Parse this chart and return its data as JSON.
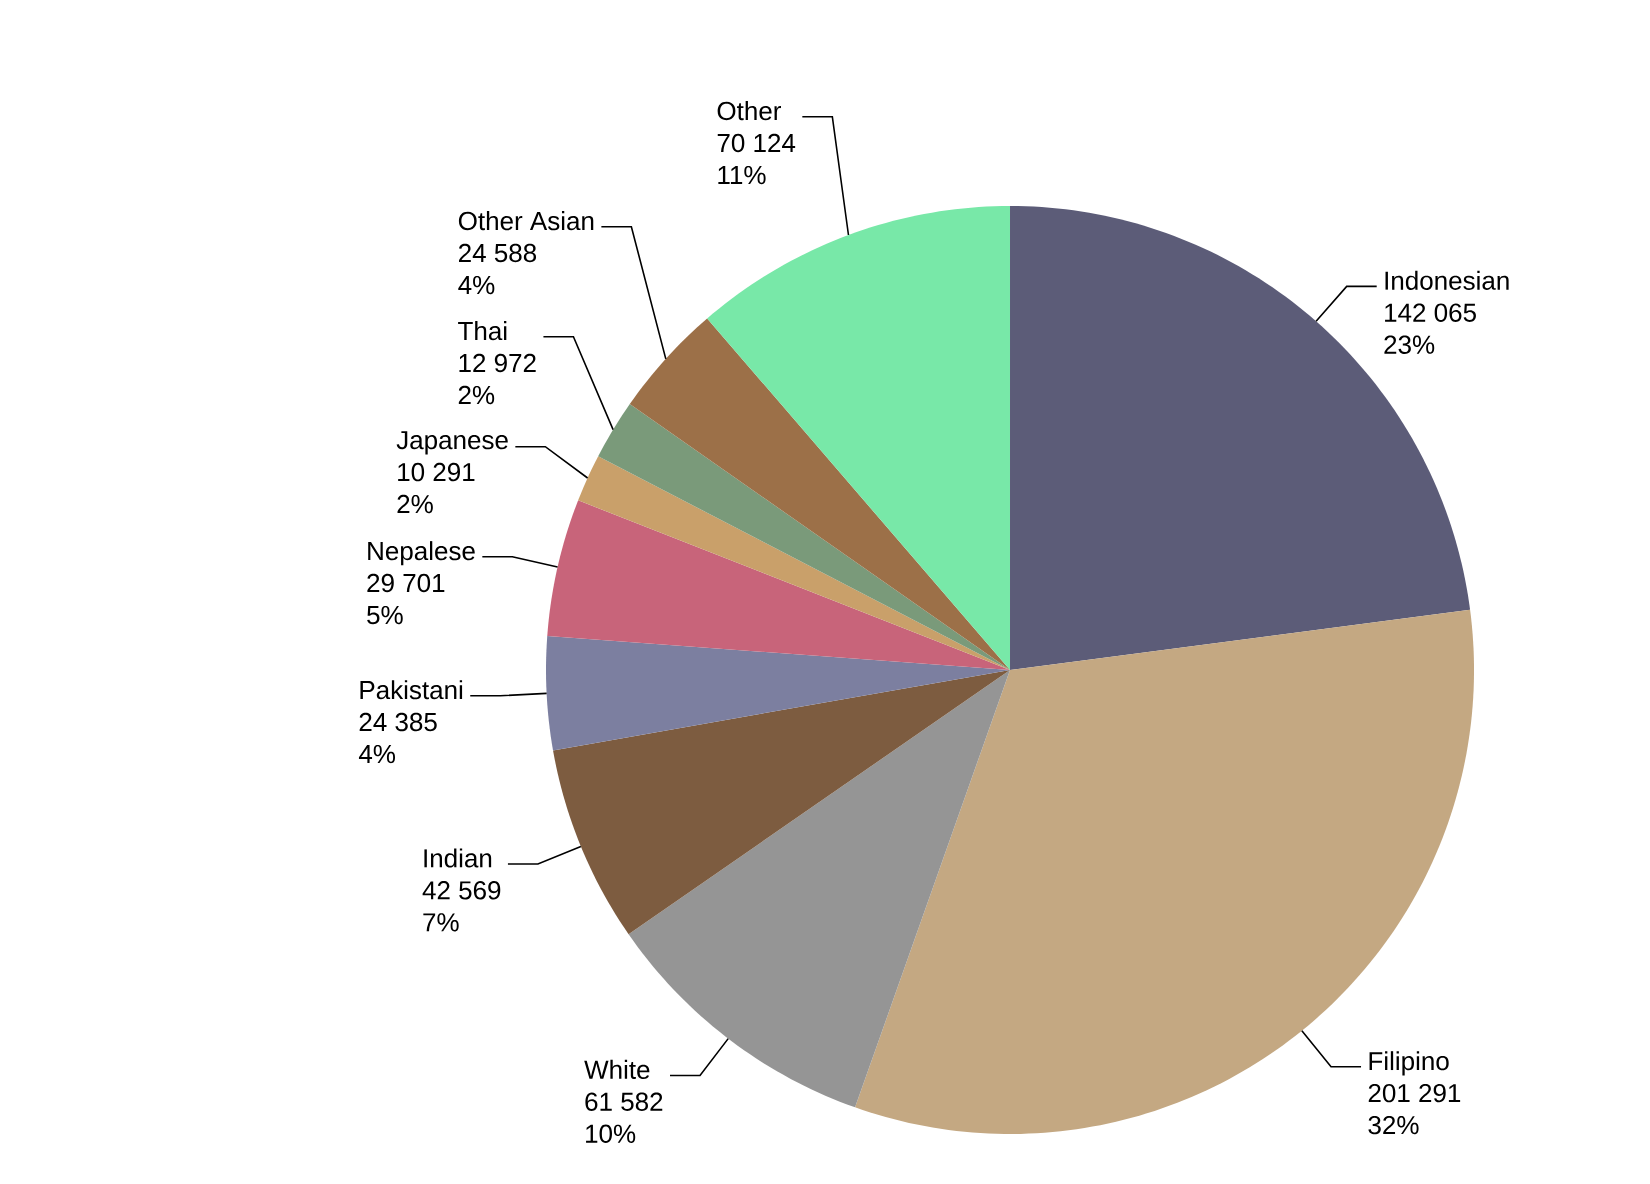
{
  "chart_data": {
    "type": "pie",
    "categories": [
      "Indonesian",
      "Filipino",
      "White",
      "Indian",
      "Pakistani",
      "Nepalese",
      "Japanese",
      "Thai",
      "Other Asian",
      "Other"
    ],
    "values": [
      142065,
      201291,
      61582,
      42569,
      24385,
      29701,
      10291,
      12972,
      24588,
      70124
    ],
    "colors": [
      "#5c5c78",
      "#c4a882",
      "#959595",
      "#7d5c40",
      "#7c7fa0",
      "#c8647a",
      "#c9a06a",
      "#7a9a7a",
      "#9c7048",
      "#78e8a8"
    ],
    "value_labels": [
      "142 065",
      "201 291",
      "61 582",
      "42 569",
      "24 385",
      "29 701",
      "10 291",
      "12 972",
      "24 588",
      "70 124"
    ],
    "annotations": [
      "23%",
      "32%",
      "10%",
      "7%",
      "4%",
      "5%",
      "2%",
      "2%",
      "4%",
      "11%"
    ]
  }
}
